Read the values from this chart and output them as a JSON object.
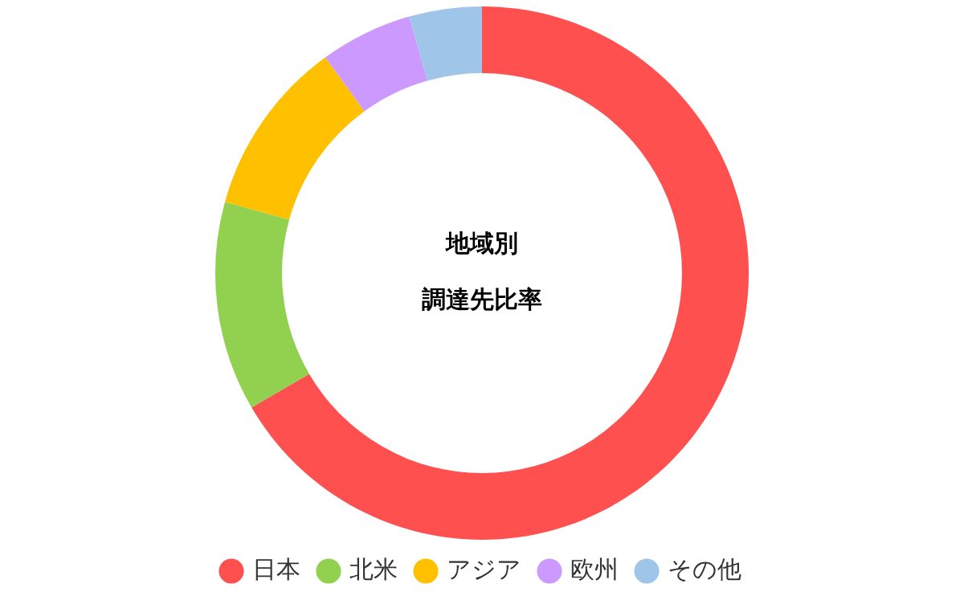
{
  "chart_data": {
    "type": "donut",
    "title": "地域別",
    "subtitle": "調達先比率",
    "categories": [
      "日本",
      "北米",
      "アジア",
      "欧州",
      "その他"
    ],
    "values": [
      66.6,
      12.7,
      10.7,
      5.6,
      4.4
    ],
    "colors": [
      "#ff5050",
      "#92d050",
      "#ffc000",
      "#cc99ff",
      "#9fc5e8"
    ],
    "legend": "bottom"
  }
}
